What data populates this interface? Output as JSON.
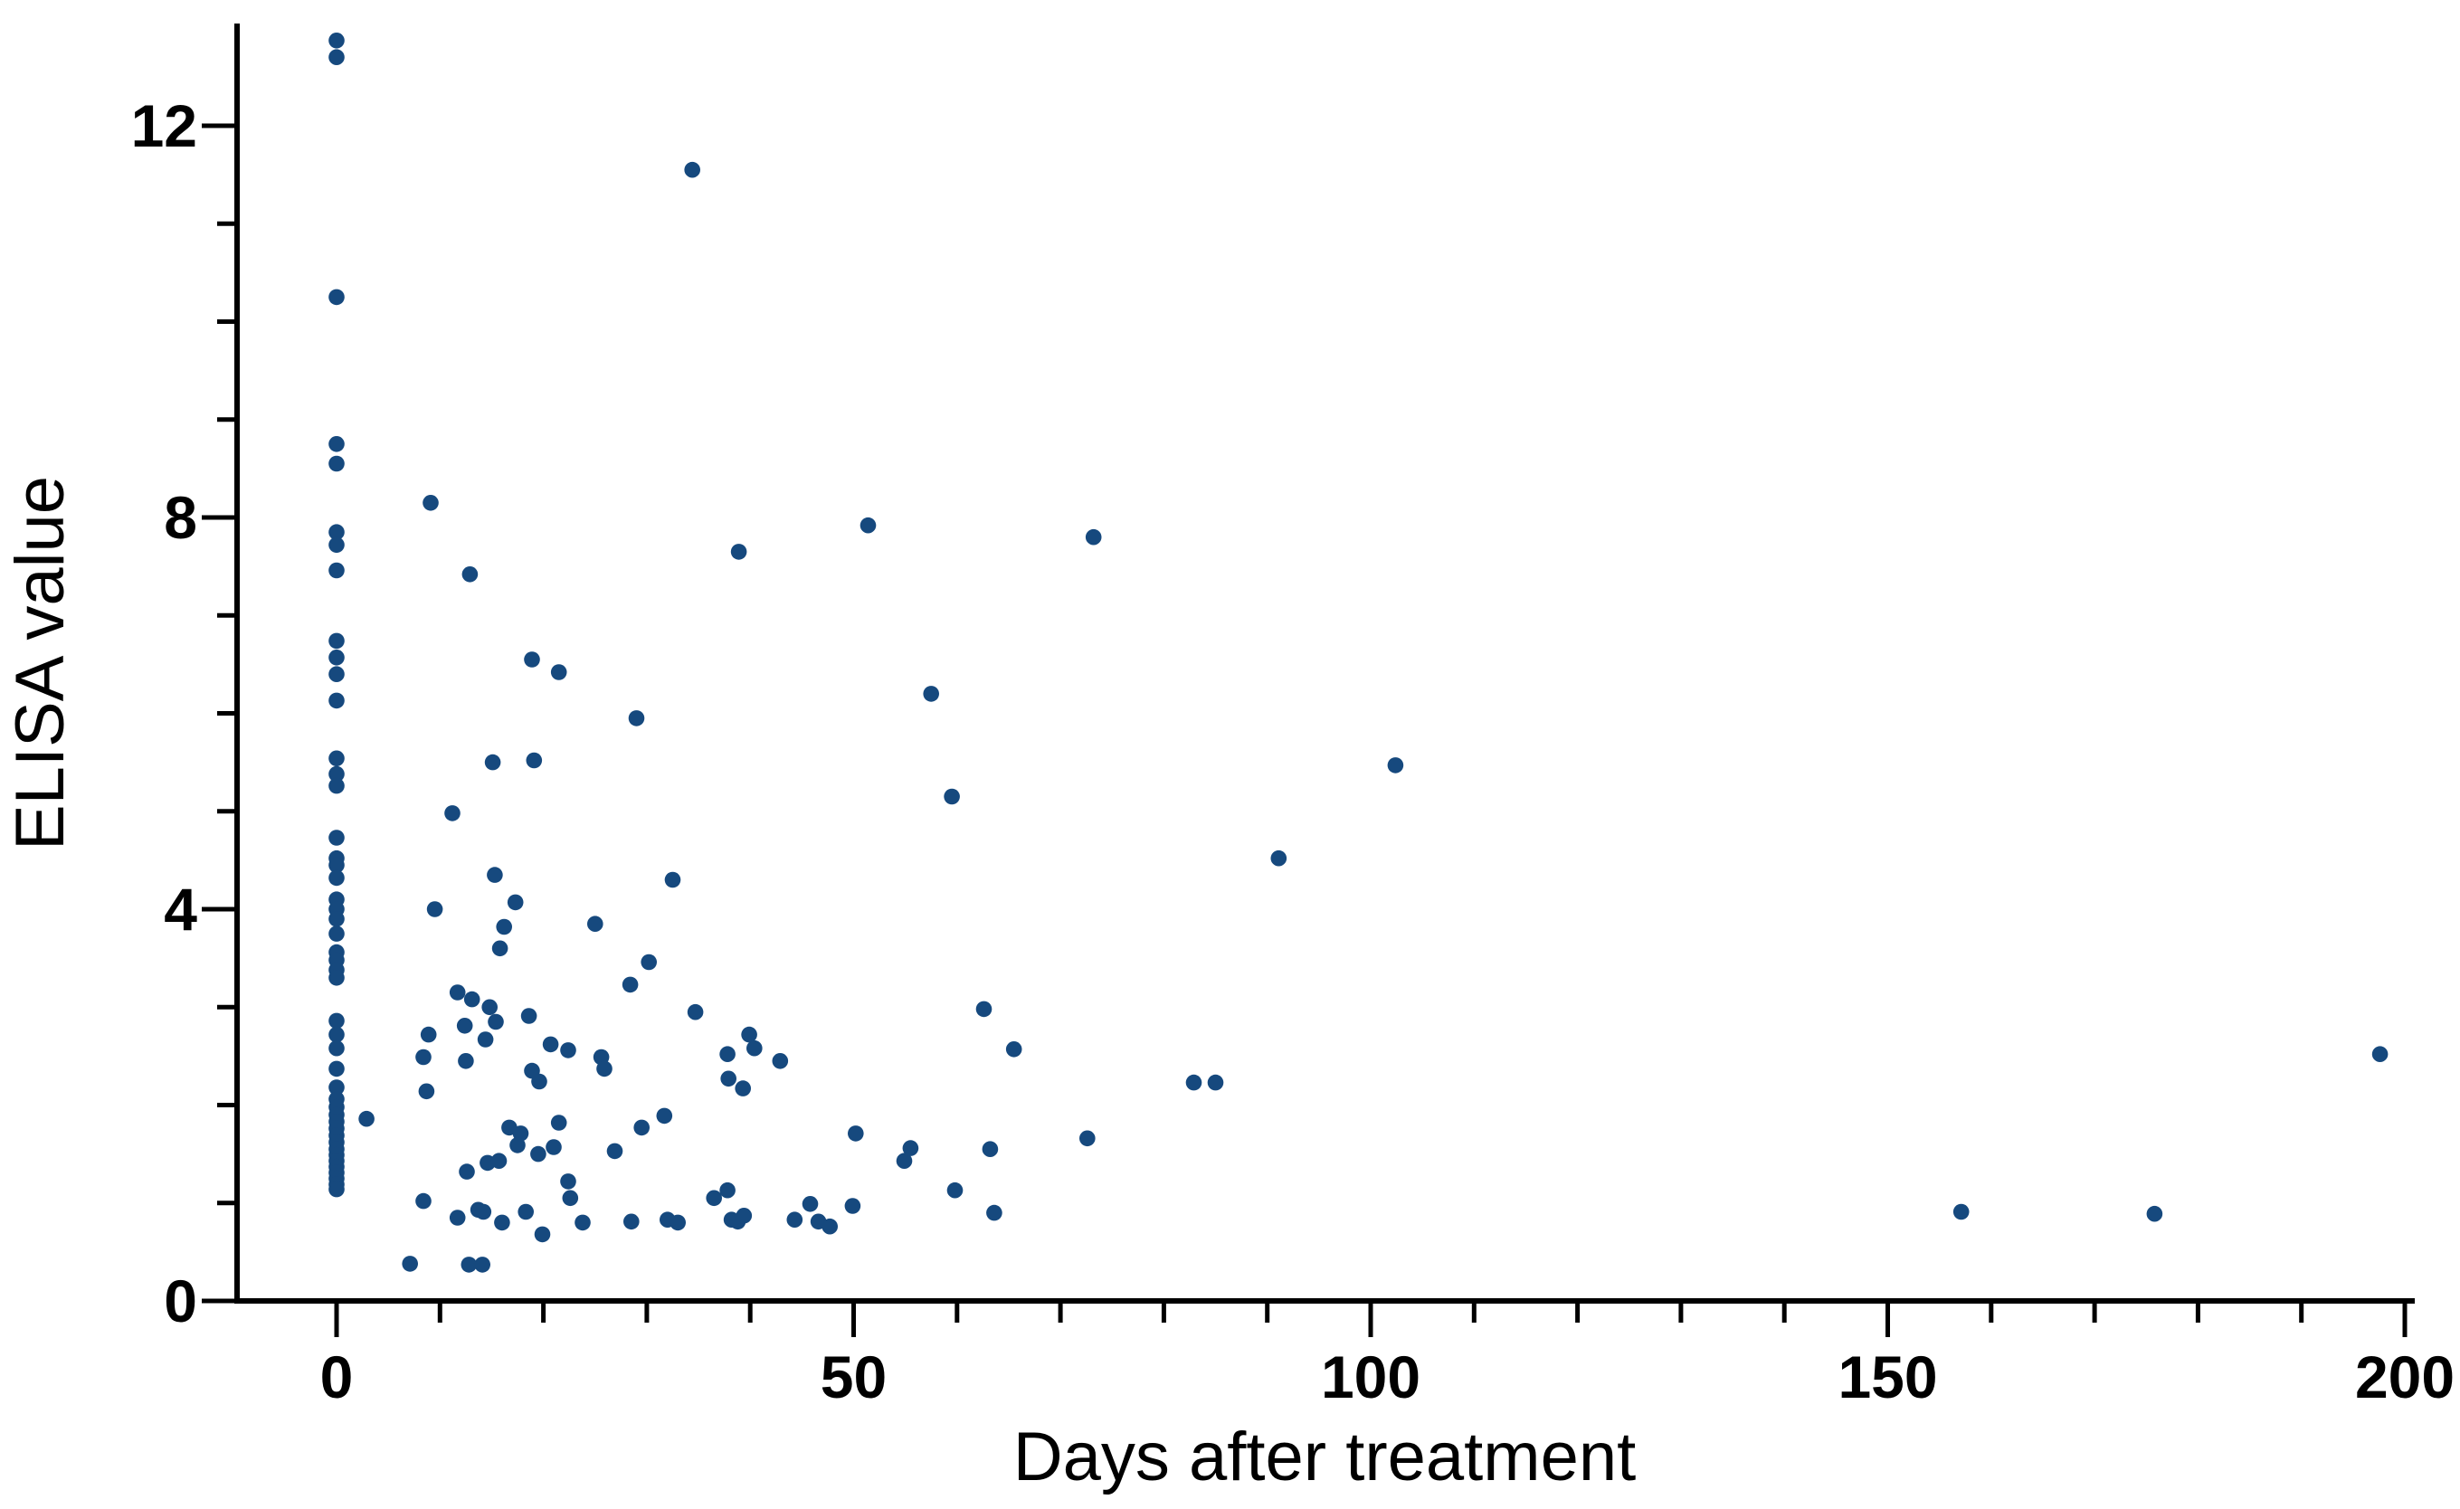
{
  "chart_data": {
    "type": "scatter",
    "title": "",
    "xlabel": "Days after treatment",
    "ylabel": "ELISA value",
    "xlim": [
      0,
      200
    ],
    "ylim": [
      0,
      13
    ],
    "x_tick_values": [
      0,
      50,
      100,
      150,
      200
    ],
    "x_tick_labels": [
      "0",
      "50",
      "100",
      "150",
      "200"
    ],
    "x_minor_step": 10,
    "y_tick_values": [
      0,
      4,
      8,
      12
    ],
    "y_tick_labels": [
      "0",
      "4",
      "8",
      "12"
    ],
    "y_minor_step": 1,
    "grid": false,
    "legend": null,
    "marker": {
      "shape": "circle",
      "color": "#16497e",
      "radius": 8.8
    },
    "axis_color": "#000000",
    "background_color": "#ffffff",
    "points": [
      [
        0,
        12.87
      ],
      [
        0,
        12.7
      ],
      [
        0,
        10.25
      ],
      [
        0,
        8.75
      ],
      [
        0,
        8.55
      ],
      [
        0,
        7.85
      ],
      [
        0,
        7.72
      ],
      [
        0,
        7.46
      ],
      [
        0,
        6.74
      ],
      [
        0,
        6.57
      ],
      [
        0,
        6.4
      ],
      [
        0,
        6.13
      ],
      [
        0,
        5.54
      ],
      [
        0,
        5.38
      ],
      [
        0,
        5.26
      ],
      [
        0,
        4.73
      ],
      [
        0,
        4.52
      ],
      [
        0,
        4.45
      ],
      [
        0,
        4.32
      ],
      [
        0,
        4.1
      ],
      [
        0,
        4.0
      ],
      [
        0,
        3.9
      ],
      [
        0,
        3.75
      ],
      [
        0,
        3.56
      ],
      [
        0,
        3.48
      ],
      [
        0,
        3.38
      ],
      [
        0,
        3.3
      ],
      [
        0,
        2.86
      ],
      [
        0,
        2.72
      ],
      [
        0,
        2.58
      ],
      [
        0,
        2.37
      ],
      [
        0,
        2.18
      ],
      [
        0,
        2.06
      ],
      [
        0,
        1.98
      ],
      [
        0,
        1.9
      ],
      [
        0,
        1.83
      ],
      [
        0,
        1.76
      ],
      [
        0,
        1.69
      ],
      [
        0,
        1.62
      ],
      [
        0,
        1.55
      ],
      [
        0,
        1.49
      ],
      [
        0,
        1.43
      ],
      [
        0,
        1.37
      ],
      [
        0,
        1.31
      ],
      [
        0,
        1.25
      ],
      [
        0,
        1.19
      ],
      [
        0,
        1.14
      ],
      [
        2.9,
        1.86
      ],
      [
        7.1,
        0.38
      ],
      [
        12.8,
        0.37
      ],
      [
        14.1,
        0.37
      ],
      [
        9.1,
        8.15
      ],
      [
        12.9,
        7.42
      ],
      [
        18.9,
        6.55
      ],
      [
        21.5,
        6.42
      ],
      [
        15.1,
        5.5
      ],
      [
        19.1,
        5.52
      ],
      [
        11.2,
        4.98
      ],
      [
        15.3,
        4.35
      ],
      [
        9.5,
        4.0
      ],
      [
        17.3,
        4.07
      ],
      [
        16.2,
        3.82
      ],
      [
        15.8,
        3.6
      ],
      [
        25.0,
        3.85
      ],
      [
        11.7,
        3.15
      ],
      [
        13.1,
        3.08
      ],
      [
        14.8,
        3.0
      ],
      [
        15.4,
        2.85
      ],
      [
        12.4,
        2.81
      ],
      [
        18.6,
        2.91
      ],
      [
        8.9,
        2.72
      ],
      [
        14.4,
        2.67
      ],
      [
        8.4,
        2.49
      ],
      [
        12.5,
        2.45
      ],
      [
        20.7,
        2.62
      ],
      [
        22.4,
        2.56
      ],
      [
        18.9,
        2.35
      ],
      [
        19.6,
        2.24
      ],
      [
        25.6,
        2.49
      ],
      [
        25.9,
        2.37
      ],
      [
        8.7,
        2.14
      ],
      [
        21.5,
        1.82
      ],
      [
        16.7,
        1.77
      ],
      [
        17.8,
        1.71
      ],
      [
        21.0,
        1.57
      ],
      [
        17.5,
        1.59
      ],
      [
        19.5,
        1.5
      ],
      [
        12.6,
        1.32
      ],
      [
        14.6,
        1.41
      ],
      [
        15.7,
        1.43
      ],
      [
        22.4,
        1.22
      ],
      [
        22.6,
        1.05
      ],
      [
        8.4,
        1.02
      ],
      [
        11.7,
        0.85
      ],
      [
        13.7,
        0.93
      ],
      [
        14.2,
        0.91
      ],
      [
        16.0,
        0.8
      ],
      [
        18.3,
        0.91
      ],
      [
        19.9,
        0.68
      ],
      [
        23.8,
        0.8
      ],
      [
        34.4,
        11.55
      ],
      [
        38.9,
        7.65
      ],
      [
        29.0,
        5.95
      ],
      [
        32.5,
        4.3
      ],
      [
        30.2,
        3.46
      ],
      [
        28.4,
        3.23
      ],
      [
        34.7,
        2.95
      ],
      [
        37.8,
        2.52
      ],
      [
        39.9,
        2.72
      ],
      [
        40.4,
        2.58
      ],
      [
        37.9,
        2.27
      ],
      [
        39.3,
        2.17
      ],
      [
        42.9,
        2.45
      ],
      [
        29.5,
        1.77
      ],
      [
        31.7,
        1.89
      ],
      [
        26.9,
        1.53
      ],
      [
        28.5,
        0.81
      ],
      [
        32.0,
        0.83
      ],
      [
        33.0,
        0.8
      ],
      [
        36.5,
        1.05
      ],
      [
        37.8,
        1.13
      ],
      [
        38.2,
        0.83
      ],
      [
        38.8,
        0.81
      ],
      [
        39.4,
        0.87
      ],
      [
        44.3,
        0.83
      ],
      [
        45.8,
        0.99
      ],
      [
        46.6,
        0.81
      ],
      [
        47.7,
        0.76
      ],
      [
        49.9,
        0.97
      ],
      [
        50.2,
        1.71
      ],
      [
        54.9,
        1.43
      ],
      [
        51.4,
        7.92
      ],
      [
        73.2,
        7.8
      ],
      [
        57.5,
        6.2
      ],
      [
        59.5,
        5.15
      ],
      [
        102.4,
        5.47
      ],
      [
        91.1,
        4.52
      ],
      [
        62.6,
        2.98
      ],
      [
        65.5,
        2.57
      ],
      [
        82.9,
        2.23
      ],
      [
        85.0,
        2.23
      ],
      [
        72.6,
        1.66
      ],
      [
        55.5,
        1.56
      ],
      [
        63.2,
        1.55
      ],
      [
        59.8,
        1.13
      ],
      [
        63.6,
        0.9
      ],
      [
        157.1,
        0.91
      ],
      [
        175.8,
        0.89
      ],
      [
        197.6,
        2.52
      ]
    ]
  }
}
